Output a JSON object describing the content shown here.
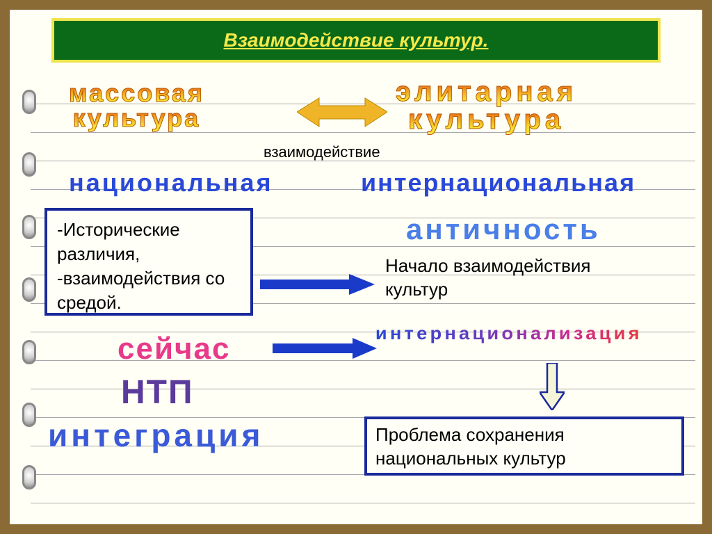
{
  "frame_border_color": "#8a6a35",
  "title_bar": {
    "bg": "#0b6a18",
    "text": "Взаимодействие культур."
  },
  "left_culture": {
    "line1": "массовая",
    "line2": "культура"
  },
  "right_culture": {
    "line1": "элитарная",
    "line2": "культура"
  },
  "interaction_label": "взаимодействие",
  "national": "национальная",
  "international": "интернациональная",
  "historical_box": "-Исторические различия,\n-взаимодействия со средой.",
  "antiquity": "античность",
  "start_interaction": "Начало   взаимодействия\nкультур",
  "now": "сейчас",
  "internationalize": "интернационализация",
  "ntp": "НТП",
  "integration": "интеграция",
  "problem_box": "Проблема сохранения национальных культур",
  "colors": {
    "title_text": "#f5e94a",
    "title_border": "#eee44e",
    "box_border": "#1a2a9a",
    "arrow_blue_fill": "#1a3aca",
    "arrow_yellow": "#f0b428",
    "down_arrow_fill": "#f5f5d8",
    "down_arrow_stroke": "#1a2a9a"
  }
}
